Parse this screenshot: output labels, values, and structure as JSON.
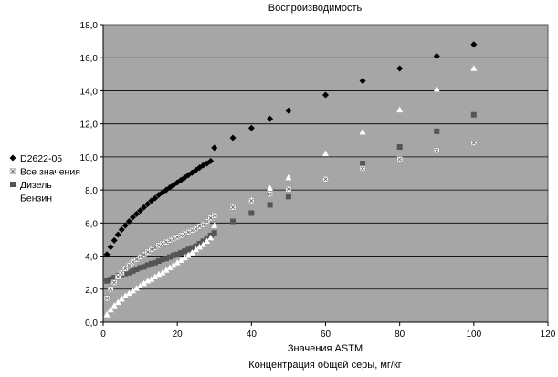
{
  "chart_data": {
    "type": "scatter",
    "title": "Воспроизводимость",
    "xlabel": "Значения ASTM",
    "xlabel2": "Концентрация общей серы, мг/кг",
    "ylabel": "",
    "xlim": [
      0,
      120
    ],
    "ylim": [
      0,
      18
    ],
    "x_ticks": [
      "0",
      "20",
      "40",
      "60",
      "80",
      "100",
      "120"
    ],
    "y_ticks": [
      "0,0",
      "2,0",
      "4,0",
      "6,0",
      "8,0",
      "10,0",
      "12,0",
      "14,0",
      "16,0",
      "18,0"
    ],
    "grid": "horizontal",
    "plot_background": "#a6a6a6",
    "legend_position": "left",
    "series": [
      {
        "name": "D2622-05",
        "marker": "diamond",
        "color": "#000000",
        "points": [
          [
            1,
            4.1
          ],
          [
            2,
            4.55
          ],
          [
            3,
            4.95
          ],
          [
            4,
            5.3
          ],
          [
            5,
            5.6
          ],
          [
            6,
            5.85
          ],
          [
            7,
            6.1
          ],
          [
            8,
            6.35
          ],
          [
            9,
            6.55
          ],
          [
            10,
            6.75
          ],
          [
            11,
            6.95
          ],
          [
            12,
            7.15
          ],
          [
            13,
            7.35
          ],
          [
            14,
            7.5
          ],
          [
            15,
            7.7
          ],
          [
            16,
            7.85
          ],
          [
            17,
            8.0
          ],
          [
            18,
            8.15
          ],
          [
            19,
            8.3
          ],
          [
            20,
            8.45
          ],
          [
            21,
            8.6
          ],
          [
            22,
            8.75
          ],
          [
            23,
            8.9
          ],
          [
            24,
            9.05
          ],
          [
            25,
            9.2
          ],
          [
            26,
            9.35
          ],
          [
            27,
            9.5
          ],
          [
            28,
            9.6
          ],
          [
            29,
            9.75
          ],
          [
            30,
            10.55
          ],
          [
            35,
            11.15
          ],
          [
            40,
            11.75
          ],
          [
            45,
            12.3
          ],
          [
            50,
            12.8
          ],
          [
            60,
            13.75
          ],
          [
            70,
            14.6
          ],
          [
            80,
            15.35
          ],
          [
            90,
            16.1
          ],
          [
            100,
            16.8
          ]
        ]
      },
      {
        "name": "Все значения",
        "marker": "circle-x",
        "color": "#ffffff",
        "points": [
          [
            1,
            1.45
          ],
          [
            2,
            2.0
          ],
          [
            3,
            2.4
          ],
          [
            4,
            2.75
          ],
          [
            5,
            3.0
          ],
          [
            6,
            3.25
          ],
          [
            7,
            3.45
          ],
          [
            8,
            3.65
          ],
          [
            9,
            3.8
          ],
          [
            10,
            3.95
          ],
          [
            11,
            4.1
          ],
          [
            12,
            4.25
          ],
          [
            13,
            4.4
          ],
          [
            14,
            4.5
          ],
          [
            15,
            4.65
          ],
          [
            16,
            4.75
          ],
          [
            17,
            4.85
          ],
          [
            18,
            4.95
          ],
          [
            19,
            5.05
          ],
          [
            20,
            5.15
          ],
          [
            21,
            5.25
          ],
          [
            22,
            5.35
          ],
          [
            23,
            5.45
          ],
          [
            24,
            5.55
          ],
          [
            25,
            5.65
          ],
          [
            26,
            5.8
          ],
          [
            27,
            5.9
          ],
          [
            28,
            6.1
          ],
          [
            29,
            6.3
          ],
          [
            30,
            6.45
          ],
          [
            35,
            6.95
          ],
          [
            40,
            7.35
          ],
          [
            45,
            7.75
          ],
          [
            50,
            8.05
          ],
          [
            60,
            8.65
          ],
          [
            70,
            9.3
          ],
          [
            80,
            9.85
          ],
          [
            90,
            10.4
          ],
          [
            100,
            10.85
          ]
        ]
      },
      {
        "name": "Дизель",
        "marker": "square",
        "color": "#555555",
        "points": [
          [
            1,
            2.5
          ],
          [
            2,
            2.6
          ],
          [
            3,
            2.7
          ],
          [
            4,
            2.8
          ],
          [
            5,
            2.9
          ],
          [
            6,
            2.95
          ],
          [
            7,
            3.0
          ],
          [
            8,
            3.1
          ],
          [
            9,
            3.2
          ],
          [
            10,
            3.3
          ],
          [
            11,
            3.35
          ],
          [
            12,
            3.45
          ],
          [
            13,
            3.55
          ],
          [
            14,
            3.6
          ],
          [
            15,
            3.7
          ],
          [
            16,
            3.8
          ],
          [
            17,
            3.85
          ],
          [
            18,
            3.95
          ],
          [
            19,
            4.05
          ],
          [
            20,
            4.1
          ],
          [
            21,
            4.2
          ],
          [
            22,
            4.3
          ],
          [
            23,
            4.4
          ],
          [
            24,
            4.5
          ],
          [
            25,
            4.6
          ],
          [
            26,
            4.75
          ],
          [
            27,
            4.9
          ],
          [
            28,
            5.05
          ],
          [
            29,
            5.25
          ],
          [
            30,
            5.4
          ],
          [
            35,
            6.1
          ],
          [
            40,
            6.6
          ],
          [
            45,
            7.1
          ],
          [
            50,
            7.6
          ],
          [
            60,
            8.65
          ],
          [
            70,
            9.6
          ],
          [
            80,
            10.6
          ],
          [
            90,
            11.55
          ],
          [
            100,
            12.55
          ]
        ]
      },
      {
        "name": "Бензин",
        "marker": "triangle",
        "color": "#ffffff",
        "points": [
          [
            1,
            0.45
          ],
          [
            2,
            0.75
          ],
          [
            3,
            1.0
          ],
          [
            4,
            1.2
          ],
          [
            5,
            1.4
          ],
          [
            6,
            1.6
          ],
          [
            7,
            1.75
          ],
          [
            8,
            1.9
          ],
          [
            9,
            2.05
          ],
          [
            10,
            2.2
          ],
          [
            11,
            2.35
          ],
          [
            12,
            2.5
          ],
          [
            13,
            2.6
          ],
          [
            14,
            2.75
          ],
          [
            15,
            2.9
          ],
          [
            16,
            3.0
          ],
          [
            17,
            3.15
          ],
          [
            18,
            3.3
          ],
          [
            19,
            3.45
          ],
          [
            20,
            3.6
          ],
          [
            21,
            3.75
          ],
          [
            22,
            3.9
          ],
          [
            23,
            4.05
          ],
          [
            24,
            4.2
          ],
          [
            25,
            4.4
          ],
          [
            26,
            4.55
          ],
          [
            27,
            4.7
          ],
          [
            28,
            4.9
          ],
          [
            29,
            5.1
          ],
          [
            30,
            5.85
          ],
          [
            35,
            6.95
          ],
          [
            40,
            7.4
          ],
          [
            45,
            8.1
          ],
          [
            50,
            8.75
          ],
          [
            60,
            10.2
          ],
          [
            70,
            11.5
          ],
          [
            80,
            12.85
          ],
          [
            90,
            14.1
          ],
          [
            100,
            15.35
          ]
        ]
      }
    ]
  }
}
